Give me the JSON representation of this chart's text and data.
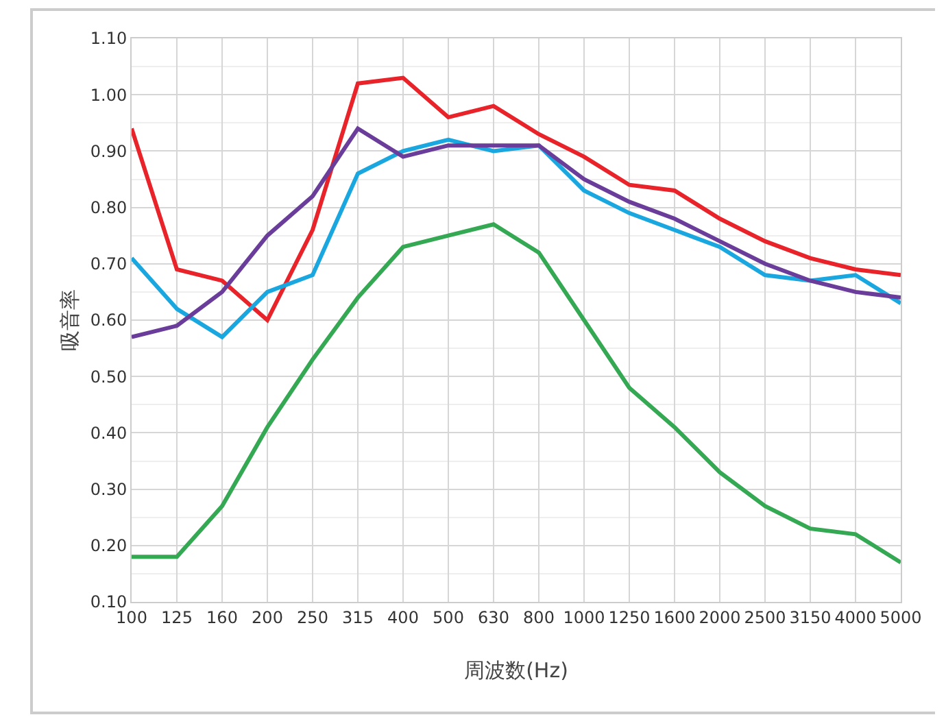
{
  "chart_data": {
    "type": "line",
    "xlabel": "周波数(Hz)",
    "ylabel": "吸音率",
    "categories": [
      "100",
      "125",
      "160",
      "200",
      "250",
      "315",
      "400",
      "500",
      "630",
      "800",
      "1000",
      "1250",
      "1600",
      "2000",
      "2500",
      "3150",
      "4000",
      "5000"
    ],
    "series": [
      {
        "color": "#e8232a",
        "values": [
          0.94,
          0.69,
          0.67,
          0.6,
          0.76,
          1.02,
          1.03,
          0.96,
          0.98,
          0.93,
          0.89,
          0.84,
          0.83,
          0.78,
          0.74,
          0.71,
          0.69,
          0.68
        ]
      },
      {
        "color": "#1aa7e0",
        "values": [
          0.71,
          0.62,
          0.57,
          0.65,
          0.68,
          0.86,
          0.9,
          0.92,
          0.9,
          0.91,
          0.83,
          0.79,
          0.76,
          0.73,
          0.68,
          0.67,
          0.68,
          0.63
        ]
      },
      {
        "color": "#6a3d9a",
        "values": [
          0.57,
          0.59,
          0.65,
          0.75,
          0.82,
          0.94,
          0.89,
          0.91,
          0.91,
          0.91,
          0.85,
          0.81,
          0.78,
          0.74,
          0.7,
          0.67,
          0.65,
          0.64
        ]
      },
      {
        "color": "#35a853",
        "values": [
          0.18,
          0.18,
          0.27,
          0.41,
          0.53,
          0.64,
          0.73,
          0.75,
          0.77,
          0.72,
          0.6,
          0.48,
          0.41,
          0.33,
          0.27,
          0.23,
          0.22,
          0.17
        ]
      }
    ],
    "ylim": [
      0.1,
      1.1
    ],
    "yticks": [
      {
        "value": 0.1,
        "label": "0.10"
      },
      {
        "value": 0.2,
        "label": "0.20"
      },
      {
        "value": 0.3,
        "label": "0.30"
      },
      {
        "value": 0.4,
        "label": "0.40"
      },
      {
        "value": 0.5,
        "label": "0.50"
      },
      {
        "value": 0.6,
        "label": "0.60"
      },
      {
        "value": 0.7,
        "label": "0.70"
      },
      {
        "value": 0.8,
        "label": "0.80"
      },
      {
        "value": 0.9,
        "label": "0.90"
      },
      {
        "value": 1.0,
        "label": "1.00"
      },
      {
        "value": 1.1,
        "label": "1.10"
      }
    ],
    "grid": true,
    "marker": "none",
    "line_style": "solid"
  }
}
